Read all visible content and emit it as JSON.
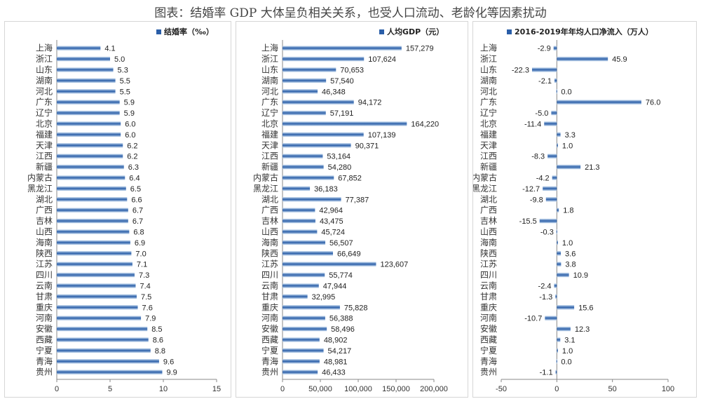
{
  "figure": {
    "title": "图表：结婚率 GDP 大体呈负相关关系，也受人口流动、老龄化等因素扰动"
  },
  "colors": {
    "bar_dark": "#2a5ea8",
    "bar_light": "#c9dcf0",
    "axis": "#888888"
  },
  "chart_data": [
    {
      "type": "bar",
      "orientation": "horizontal",
      "legend": "结婚率（‰）",
      "categories": [
        "上海",
        "浙江",
        "山东",
        "湖南",
        "河北",
        "广东",
        "辽宁",
        "北京",
        "福建",
        "天津",
        "江西",
        "新疆",
        "内蒙古",
        "黑龙江",
        "湖北",
        "广西",
        "吉林",
        "山西",
        "海南",
        "陕西",
        "江苏",
        "四川",
        "云南",
        "甘肃",
        "重庆",
        "河南",
        "安徽",
        "西藏",
        "宁夏",
        "青海",
        "贵州"
      ],
      "values": [
        4.1,
        5.0,
        5.3,
        5.5,
        5.5,
        5.9,
        5.9,
        6.0,
        6.0,
        6.2,
        6.2,
        6.3,
        6.4,
        6.5,
        6.6,
        6.7,
        6.7,
        6.8,
        6.9,
        7.0,
        7.1,
        7.3,
        7.4,
        7.5,
        7.6,
        7.9,
        8.5,
        8.6,
        8.8,
        9.6,
        9.9
      ],
      "value_labels": [
        "4.1",
        "5.0",
        "5.3",
        "5.5",
        "5.5",
        "5.9",
        "5.9",
        "6.0",
        "6.0",
        "6.2",
        "6.2",
        "6.3",
        "6.4",
        "6.5",
        "6.6",
        "6.7",
        "6.7",
        "6.8",
        "6.9",
        "7.0",
        "7.1",
        "7.3",
        "7.4",
        "7.5",
        "7.6",
        "7.9",
        "8.5",
        "8.6",
        "8.8",
        "9.6",
        "9.9"
      ],
      "xlim": [
        0,
        15
      ],
      "ticks": [
        0,
        5,
        10,
        15
      ],
      "tick_labels": [
        "0",
        "5",
        "10",
        "15"
      ]
    },
    {
      "type": "bar",
      "orientation": "horizontal",
      "legend": "人均GDP（元）",
      "categories": [
        "上海",
        "浙江",
        "山东",
        "湖南",
        "河北",
        "广东",
        "辽宁",
        "北京",
        "福建",
        "天津",
        "江西",
        "新疆",
        "内蒙古",
        "黑龙江",
        "湖北",
        "广西",
        "吉林",
        "山西",
        "海南",
        "陕西",
        "江苏",
        "四川",
        "云南",
        "甘肃",
        "重庆",
        "河南",
        "安徽",
        "西藏",
        "宁夏",
        "青海",
        "贵州"
      ],
      "values": [
        157279,
        107624,
        70653,
        57540,
        46348,
        94172,
        57191,
        164220,
        107139,
        90371,
        53164,
        54280,
        67852,
        36183,
        77387,
        42964,
        43475,
        45724,
        56507,
        66649,
        123607,
        55774,
        47944,
        32995,
        75828,
        56388,
        58496,
        48902,
        54217,
        48981,
        46433
      ],
      "value_labels": [
        "157,279",
        "107,624",
        "70,653",
        "57,540",
        "46,348",
        "94,172",
        "57,191",
        "164,220",
        "107,139",
        "90,371",
        "53,164",
        "54,280",
        "67,852",
        "36,183",
        "77,387",
        "42,964",
        "43,475",
        "45,724",
        "56,507",
        "66,649",
        "123,607",
        "55,774",
        "47,944",
        "32,995",
        "75,828",
        "56,388",
        "58,496",
        "48,902",
        "54,217",
        "48,981",
        "46,433"
      ],
      "xlim": [
        0,
        200000
      ],
      "ticks": [
        0,
        50000,
        100000,
        150000,
        200000
      ],
      "tick_labels": [
        "0",
        "50,000",
        "100,000",
        "150,000",
        "200,000"
      ]
    },
    {
      "type": "bar",
      "orientation": "horizontal",
      "legend": "2016-2019年年均人口净流入（万人）",
      "categories": [
        "上海",
        "浙江",
        "山东",
        "湖南",
        "河北",
        "广东",
        "辽宁",
        "北京",
        "福建",
        "天津",
        "江西",
        "新疆",
        "内蒙古",
        "黑龙江",
        "湖北",
        "广西",
        "吉林",
        "山西",
        "海南",
        "陕西",
        "江苏",
        "四川",
        "云南",
        "甘肃",
        "重庆",
        "河南",
        "安徽",
        "西藏",
        "宁夏",
        "青海",
        "贵州"
      ],
      "values": [
        -2.9,
        45.9,
        -22.3,
        -2.1,
        0.0,
        76.0,
        -5.0,
        -11.4,
        3.3,
        1.0,
        -8.3,
        21.3,
        -4.2,
        -12.7,
        -9.8,
        1.8,
        -15.5,
        -0.3,
        1.0,
        3.6,
        3.8,
        10.9,
        -2.4,
        -1.3,
        15.6,
        -10.7,
        12.3,
        3.1,
        1.0,
        0.0,
        -1.1
      ],
      "value_labels": [
        "-2.9",
        "45.9",
        "-22.3",
        "-2.1",
        "0.0",
        "76.0",
        "-5.0",
        "-11.4",
        "3.3",
        "1.0",
        "-8.3",
        "21.3",
        "-4.2",
        "-12.7",
        "-9.8",
        "1.8",
        "-15.5",
        "-0.3",
        "1.0",
        "3.6",
        "3.8",
        "10.9",
        "-2.4",
        "-1.3",
        "15.6",
        "-10.7",
        "12.3",
        "3.1",
        "1.0",
        "0.0",
        "-1.1"
      ],
      "xlim": [
        -50,
        100
      ],
      "ticks": [
        -50,
        0,
        50,
        100
      ],
      "tick_labels": [
        "-50",
        "0",
        "50",
        "100"
      ]
    }
  ]
}
